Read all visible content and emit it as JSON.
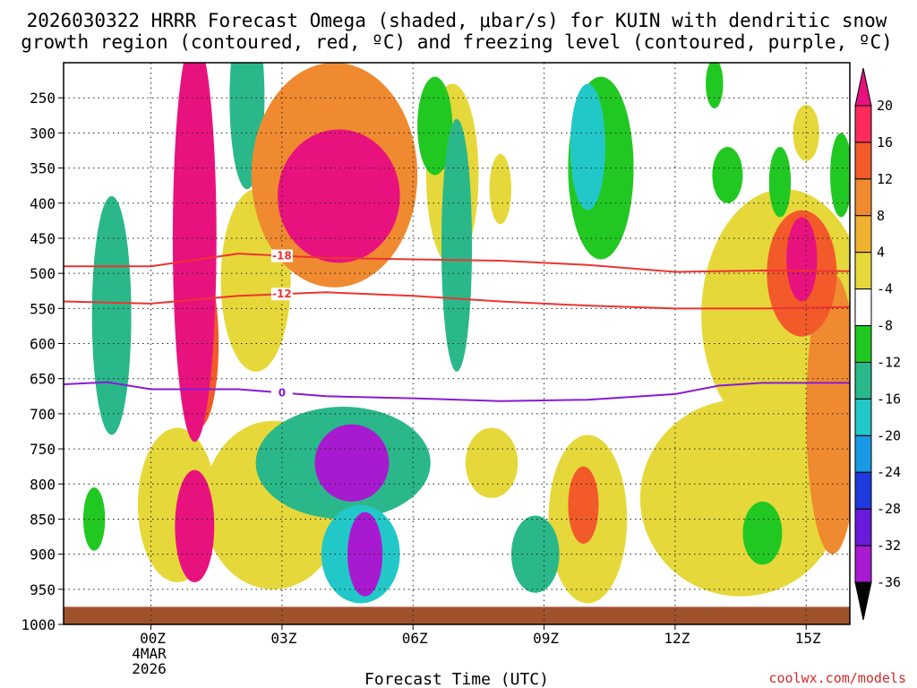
{
  "chart_data": {
    "type": "heatmap",
    "title_lines": [
      "2026030322 HRRR Forecast Omega (shaded, μbar/s) for KUIN with dendritic snow",
      "growth region (contoured, red, ºC) and freezing level (contoured, purple, ºC)"
    ],
    "xlabel": "Forecast Time (UTC)",
    "credit": "coolwx.com/models",
    "x_range_hours": [
      -2.0,
      16.0
    ],
    "x_ticks": [
      {
        "hour": 0,
        "label": "00Z",
        "sub": [
          "4MAR",
          "2026"
        ]
      },
      {
        "hour": 3,
        "label": "03Z",
        "sub": []
      },
      {
        "hour": 6,
        "label": "06Z",
        "sub": []
      },
      {
        "hour": 9,
        "label": "09Z",
        "sub": []
      },
      {
        "hour": 12,
        "label": "12Z",
        "sub": []
      },
      {
        "hour": 15,
        "label": "15Z",
        "sub": []
      }
    ],
    "y_pressure_range": [
      200,
      1000
    ],
    "y_ticks": [
      "250",
      "300",
      "350",
      "400",
      "450",
      "500",
      "550",
      "600",
      "650",
      "700",
      "750",
      "800",
      "850",
      "900",
      "950",
      "1000"
    ],
    "surface_level": 975,
    "colorbar": {
      "levels": [
        "20",
        "16",
        "12",
        "8",
        "4",
        "-4",
        "-8",
        "-12",
        "-16",
        "-20",
        "-24",
        "-28",
        "-32",
        "-36"
      ],
      "colors": [
        "#ff2a5c",
        "#f25a2a",
        "#f08a30",
        "#f0b030",
        "#e6d83a",
        "#ffffff",
        "#22c822",
        "#2ab88a",
        "#22c8c8",
        "#1a9ae6",
        "#1e3adc",
        "#6a1ad8",
        "#a81ad0",
        "#b8b8b8"
      ],
      "top_arrow": "#e8127e",
      "bottom_arrow": "#000000"
    },
    "omega_blobs": [
      {
        "hour": 1.0,
        "p": 450,
        "rh": 0.5,
        "rp": 290,
        "value": 24
      },
      {
        "hour": 1.0,
        "p": 860,
        "rh": 0.45,
        "rp": 80,
        "value": 20
      },
      {
        "hour": 1.1,
        "p": 600,
        "rh": 0.45,
        "rp": 120,
        "value": 12
      },
      {
        "hour": 0.6,
        "p": 830,
        "rh": 0.9,
        "rp": 110,
        "value": 5
      },
      {
        "hour": 4.3,
        "p": 390,
        "rh": 1.4,
        "rp": 95,
        "value": 24
      },
      {
        "hour": 4.2,
        "p": 360,
        "rh": 1.9,
        "rp": 160,
        "value": 10
      },
      {
        "hour": 2.4,
        "p": 510,
        "rh": 0.8,
        "rp": 130,
        "value": 6
      },
      {
        "hour": 4.6,
        "p": 770,
        "rh": 0.85,
        "rp": 55,
        "value": -30
      },
      {
        "hour": 4.9,
        "p": 900,
        "rh": 0.4,
        "rp": 60,
        "value": -30
      },
      {
        "hour": 4.4,
        "p": 770,
        "rh": 2.0,
        "rp": 80,
        "value": -10
      },
      {
        "hour": 4.8,
        "p": 900,
        "rh": 0.9,
        "rp": 70,
        "value": -12
      },
      {
        "hour": 2.8,
        "p": 830,
        "rh": 1.6,
        "rp": 120,
        "value": 5
      },
      {
        "hour": -0.9,
        "p": 560,
        "rh": 0.45,
        "rp": 170,
        "value": -11
      },
      {
        "hour": -1.3,
        "p": 850,
        "rh": 0.25,
        "rp": 45,
        "value": -6
      },
      {
        "hour": 2.2,
        "p": 250,
        "rh": 0.4,
        "rp": 130,
        "value": -9
      },
      {
        "hour": 7.0,
        "p": 460,
        "rh": 0.35,
        "rp": 180,
        "value": -10
      },
      {
        "hour": 6.9,
        "p": 360,
        "rh": 0.6,
        "rp": 130,
        "value": 5
      },
      {
        "hour": 6.5,
        "p": 290,
        "rh": 0.4,
        "rp": 70,
        "value": -6
      },
      {
        "hour": 10.0,
        "p": 320,
        "rh": 0.4,
        "rp": 90,
        "value": -12
      },
      {
        "hour": 10.3,
        "p": 350,
        "rh": 0.75,
        "rp": 130,
        "value": -6
      },
      {
        "hour": 8.8,
        "p": 900,
        "rh": 0.55,
        "rp": 55,
        "value": -8
      },
      {
        "hour": 7.8,
        "p": 770,
        "rh": 0.6,
        "rp": 50,
        "value": 5
      },
      {
        "hour": 9.9,
        "p": 830,
        "rh": 0.35,
        "rp": 55,
        "value": 13
      },
      {
        "hour": 10.0,
        "p": 850,
        "rh": 0.9,
        "rp": 120,
        "value": 6
      },
      {
        "hour": 14.9,
        "p": 480,
        "rh": 0.35,
        "rp": 60,
        "value": 22
      },
      {
        "hour": 14.9,
        "p": 500,
        "rh": 0.8,
        "rp": 90,
        "value": 14
      },
      {
        "hour": 14.5,
        "p": 560,
        "rh": 1.9,
        "rp": 180,
        "value": 6
      },
      {
        "hour": 15.6,
        "p": 700,
        "rh": 0.6,
        "rp": 200,
        "value": 10
      },
      {
        "hour": 13.5,
        "p": 820,
        "rh": 2.3,
        "rp": 140,
        "value": 5
      },
      {
        "hour": 14.0,
        "p": 870,
        "rh": 0.45,
        "rp": 45,
        "value": -6
      },
      {
        "hour": 13.2,
        "p": 360,
        "rh": 0.35,
        "rp": 40,
        "value": -6
      },
      {
        "hour": 14.4,
        "p": 370,
        "rh": 0.25,
        "rp": 50,
        "value": -7
      },
      {
        "hour": 15.8,
        "p": 360,
        "rh": 0.25,
        "rp": 60,
        "value": -7
      },
      {
        "hour": 8.0,
        "p": 380,
        "rh": 0.25,
        "rp": 50,
        "value": 5
      },
      {
        "hour": 15.0,
        "p": 300,
        "rh": 0.3,
        "rp": 40,
        "value": 5
      },
      {
        "hour": 12.9,
        "p": 230,
        "rh": 0.2,
        "rp": 35,
        "value": -6
      }
    ],
    "dendritic_contours": [
      {
        "label": "-18",
        "label_hour": 3.0,
        "points": [
          [
            -2,
            490
          ],
          [
            0,
            490
          ],
          [
            2,
            472
          ],
          [
            4,
            478
          ],
          [
            6,
            480
          ],
          [
            8,
            482
          ],
          [
            10,
            488
          ],
          [
            12,
            498
          ],
          [
            14,
            496
          ],
          [
            16,
            497
          ]
        ]
      },
      {
        "label": "-12",
        "label_hour": 3.0,
        "points": [
          [
            -2,
            540
          ],
          [
            0,
            543
          ],
          [
            2,
            532
          ],
          [
            4,
            527
          ],
          [
            6,
            532
          ],
          [
            8,
            540
          ],
          [
            10,
            546
          ],
          [
            12,
            550
          ],
          [
            14,
            550
          ],
          [
            16,
            548
          ]
        ]
      }
    ],
    "freezing_contour": {
      "label": "0",
      "label_hour": 3.0,
      "points": [
        [
          -2,
          658
        ],
        [
          -1,
          655
        ],
        [
          0,
          665
        ],
        [
          2,
          665
        ],
        [
          4,
          675
        ],
        [
          6,
          678
        ],
        [
          8,
          682
        ],
        [
          10,
          680
        ],
        [
          12,
          672
        ],
        [
          13,
          660
        ],
        [
          14,
          656
        ],
        [
          16,
          656
        ]
      ]
    }
  }
}
